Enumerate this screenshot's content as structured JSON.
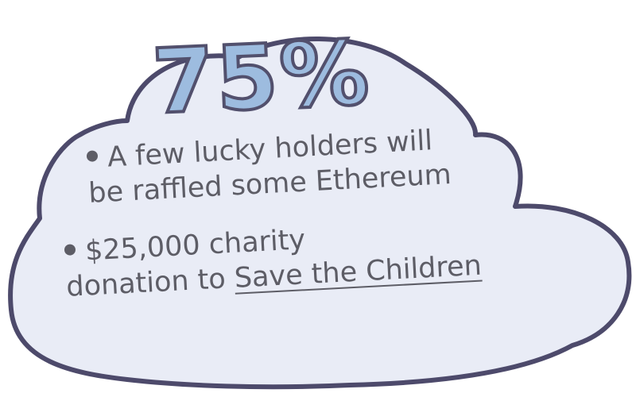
{
  "colors": {
    "cloud_fill": "#e9ecf6",
    "cloud_outline": "#4d4a6b",
    "headline_fill": "#9dbcdf",
    "text": "#5d5d66"
  },
  "headline": "75%",
  "bullets": [
    {
      "line1": "A few lucky holders will",
      "line2": "be raffled some Ethereum"
    },
    {
      "line1": "$25,000 charity",
      "line2_prefix": "donation to ",
      "link_text": "Save the Children"
    }
  ]
}
